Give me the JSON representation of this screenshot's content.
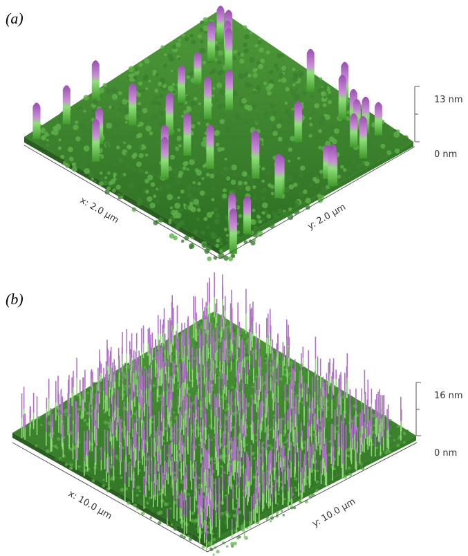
{
  "panels": [
    {
      "label": "(a)",
      "x_axis": "x: 2.0 µm",
      "y_axis": "y: 2.0 µm",
      "z_top": "13 nm",
      "z_bottom": "0 nm"
    },
    {
      "label": "(b)",
      "x_axis": "x: 10.0 µm",
      "y_axis": "y: 10.0 µm",
      "z_top": "16 nm",
      "z_bottom": "0 nm"
    }
  ]
}
